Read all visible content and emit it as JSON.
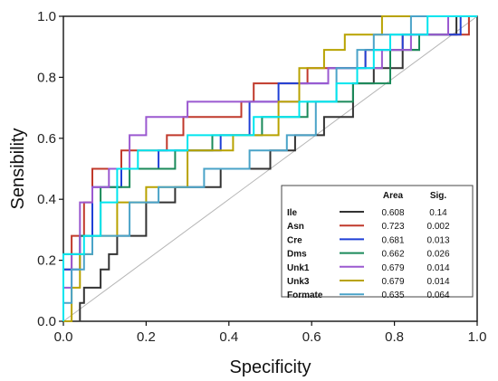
{
  "chart_data": {
    "type": "line",
    "xlabel": "Specificity",
    "ylabel": "Sensibility",
    "xlim": [
      0,
      1
    ],
    "ylim": [
      0,
      1
    ],
    "x_ticks": [
      "0.0",
      "0.2",
      "0.4",
      "0.6",
      "0.8",
      "1.0"
    ],
    "y_ticks": [
      "0.0",
      "0.2",
      "0.4",
      "0.6",
      "0.8",
      "1.0"
    ],
    "grid": false,
    "reference_line": [
      [
        0,
        0
      ],
      [
        1,
        1
      ]
    ],
    "legend": {
      "placement": "bottom-right",
      "headers": [
        "Area",
        "Sig."
      ]
    },
    "series": [
      {
        "name": "Ile",
        "area": "0.608",
        "sig": "0.14",
        "color": "#333333",
        "points": [
          [
            0.04,
            0
          ],
          [
            0.04,
            0.06
          ],
          [
            0.05,
            0.06
          ],
          [
            0.05,
            0.11
          ],
          [
            0.09,
            0.11
          ],
          [
            0.09,
            0.17
          ],
          [
            0.11,
            0.17
          ],
          [
            0.11,
            0.22
          ],
          [
            0.13,
            0.22
          ],
          [
            0.13,
            0.28
          ],
          [
            0.2,
            0.28
          ],
          [
            0.2,
            0.39
          ],
          [
            0.27,
            0.39
          ],
          [
            0.27,
            0.44
          ],
          [
            0.38,
            0.44
          ],
          [
            0.38,
            0.5
          ],
          [
            0.5,
            0.5
          ],
          [
            0.5,
            0.56
          ],
          [
            0.56,
            0.56
          ],
          [
            0.56,
            0.61
          ],
          [
            0.63,
            0.61
          ],
          [
            0.63,
            0.67
          ],
          [
            0.7,
            0.67
          ],
          [
            0.7,
            0.78
          ],
          [
            0.75,
            0.78
          ],
          [
            0.75,
            0.83
          ],
          [
            0.82,
            0.83
          ],
          [
            0.82,
            0.89
          ],
          [
            0.86,
            0.89
          ],
          [
            0.86,
            0.94
          ],
          [
            0.95,
            0.94
          ],
          [
            0.95,
            1
          ],
          [
            1,
            1
          ]
        ]
      },
      {
        "name": "Asn",
        "area": "0.723",
        "sig": "0.002",
        "color": "#c0392b",
        "points": [
          [
            0,
            0
          ],
          [
            0,
            0.17
          ],
          [
            0.02,
            0.17
          ],
          [
            0.02,
            0.28
          ],
          [
            0.05,
            0.28
          ],
          [
            0.05,
            0.39
          ],
          [
            0.07,
            0.39
          ],
          [
            0.07,
            0.5
          ],
          [
            0.14,
            0.5
          ],
          [
            0.14,
            0.56
          ],
          [
            0.25,
            0.56
          ],
          [
            0.25,
            0.61
          ],
          [
            0.29,
            0.61
          ],
          [
            0.29,
            0.67
          ],
          [
            0.43,
            0.67
          ],
          [
            0.43,
            0.72
          ],
          [
            0.46,
            0.72
          ],
          [
            0.46,
            0.78
          ],
          [
            0.59,
            0.78
          ],
          [
            0.59,
            0.83
          ],
          [
            0.73,
            0.83
          ],
          [
            0.73,
            0.89
          ],
          [
            0.82,
            0.89
          ],
          [
            0.82,
            0.94
          ],
          [
            0.98,
            0.94
          ],
          [
            0.98,
            1
          ],
          [
            1,
            1
          ]
        ]
      },
      {
        "name": "Cre",
        "area": "0.681",
        "sig": "0.013",
        "color": "#1f3fd6",
        "points": [
          [
            0,
            0
          ],
          [
            0,
            0.17
          ],
          [
            0.04,
            0.17
          ],
          [
            0.04,
            0.28
          ],
          [
            0.07,
            0.28
          ],
          [
            0.07,
            0.44
          ],
          [
            0.14,
            0.44
          ],
          [
            0.14,
            0.5
          ],
          [
            0.23,
            0.5
          ],
          [
            0.23,
            0.56
          ],
          [
            0.38,
            0.56
          ],
          [
            0.38,
            0.61
          ],
          [
            0.45,
            0.61
          ],
          [
            0.45,
            0.72
          ],
          [
            0.52,
            0.72
          ],
          [
            0.52,
            0.78
          ],
          [
            0.64,
            0.78
          ],
          [
            0.64,
            0.83
          ],
          [
            0.73,
            0.83
          ],
          [
            0.73,
            0.89
          ],
          [
            0.82,
            0.89
          ],
          [
            0.82,
            0.94
          ],
          [
            0.96,
            0.94
          ],
          [
            0.96,
            1
          ],
          [
            1,
            1
          ]
        ]
      },
      {
        "name": "Dms",
        "area": "0.662",
        "sig": "0.026",
        "color": "#1a8a5a",
        "points": [
          [
            0,
            0
          ],
          [
            0,
            0.22
          ],
          [
            0.04,
            0.22
          ],
          [
            0.04,
            0.28
          ],
          [
            0.09,
            0.28
          ],
          [
            0.09,
            0.44
          ],
          [
            0.16,
            0.44
          ],
          [
            0.16,
            0.5
          ],
          [
            0.27,
            0.5
          ],
          [
            0.27,
            0.56
          ],
          [
            0.36,
            0.56
          ],
          [
            0.36,
            0.61
          ],
          [
            0.48,
            0.61
          ],
          [
            0.48,
            0.67
          ],
          [
            0.59,
            0.67
          ],
          [
            0.59,
            0.72
          ],
          [
            0.7,
            0.72
          ],
          [
            0.7,
            0.78
          ],
          [
            0.79,
            0.78
          ],
          [
            0.79,
            0.89
          ],
          [
            0.86,
            0.89
          ],
          [
            0.86,
            0.94
          ],
          [
            0.93,
            0.94
          ],
          [
            0.93,
            1
          ],
          [
            1,
            1
          ]
        ]
      },
      {
        "name": "Unk1",
        "area": "0.679",
        "sig": "0.014",
        "color": "#9b59d0",
        "points": [
          [
            0,
            0
          ],
          [
            0,
            0.11
          ],
          [
            0.02,
            0.11
          ],
          [
            0.02,
            0.22
          ],
          [
            0.04,
            0.22
          ],
          [
            0.04,
            0.39
          ],
          [
            0.07,
            0.39
          ],
          [
            0.07,
            0.44
          ],
          [
            0.11,
            0.44
          ],
          [
            0.11,
            0.5
          ],
          [
            0.16,
            0.5
          ],
          [
            0.16,
            0.61
          ],
          [
            0.2,
            0.61
          ],
          [
            0.2,
            0.67
          ],
          [
            0.3,
            0.67
          ],
          [
            0.3,
            0.72
          ],
          [
            0.57,
            0.72
          ],
          [
            0.57,
            0.78
          ],
          [
            0.64,
            0.78
          ],
          [
            0.64,
            0.83
          ],
          [
            0.77,
            0.83
          ],
          [
            0.77,
            0.89
          ],
          [
            0.84,
            0.89
          ],
          [
            0.84,
            0.94
          ],
          [
            0.93,
            0.94
          ],
          [
            0.93,
            1
          ],
          [
            1,
            1
          ]
        ]
      },
      {
        "name": "Unk3",
        "area": "0.679",
        "sig": "0.014",
        "color": "#b8a200",
        "points": [
          [
            0,
            0
          ],
          [
            0.02,
            0
          ],
          [
            0.02,
            0.11
          ],
          [
            0.04,
            0.11
          ],
          [
            0.04,
            0.22
          ],
          [
            0.07,
            0.22
          ],
          [
            0.07,
            0.28
          ],
          [
            0.13,
            0.28
          ],
          [
            0.13,
            0.39
          ],
          [
            0.2,
            0.39
          ],
          [
            0.2,
            0.44
          ],
          [
            0.3,
            0.44
          ],
          [
            0.3,
            0.56
          ],
          [
            0.41,
            0.56
          ],
          [
            0.41,
            0.61
          ],
          [
            0.52,
            0.61
          ],
          [
            0.52,
            0.72
          ],
          [
            0.57,
            0.72
          ],
          [
            0.57,
            0.83
          ],
          [
            0.63,
            0.83
          ],
          [
            0.63,
            0.89
          ],
          [
            0.68,
            0.89
          ],
          [
            0.68,
            0.94
          ],
          [
            0.77,
            0.94
          ],
          [
            0.77,
            1
          ],
          [
            1,
            1
          ]
        ]
      },
      {
        "name": "Formate",
        "area": "0.635",
        "sig": "0.064",
        "color": "#4aa3c8",
        "points": [
          [
            0,
            0
          ],
          [
            0,
            0.06
          ],
          [
            0.02,
            0.06
          ],
          [
            0.02,
            0.17
          ],
          [
            0.05,
            0.17
          ],
          [
            0.05,
            0.22
          ],
          [
            0.07,
            0.22
          ],
          [
            0.07,
            0.28
          ],
          [
            0.16,
            0.28
          ],
          [
            0.16,
            0.39
          ],
          [
            0.23,
            0.39
          ],
          [
            0.23,
            0.44
          ],
          [
            0.34,
            0.44
          ],
          [
            0.34,
            0.5
          ],
          [
            0.45,
            0.5
          ],
          [
            0.45,
            0.56
          ],
          [
            0.54,
            0.56
          ],
          [
            0.54,
            0.61
          ],
          [
            0.61,
            0.61
          ],
          [
            0.61,
            0.72
          ],
          [
            0.66,
            0.72
          ],
          [
            0.66,
            0.83
          ],
          [
            0.71,
            0.83
          ],
          [
            0.71,
            0.89
          ],
          [
            0.75,
            0.89
          ],
          [
            0.75,
            0.94
          ],
          [
            0.84,
            0.94
          ],
          [
            0.84,
            1
          ],
          [
            1,
            1
          ]
        ]
      },
      {
        "name": "",
        "area": "",
        "sig": "",
        "color": "#00e5ee",
        "legend": false,
        "points": [
          [
            0,
            0
          ],
          [
            0,
            0.22
          ],
          [
            0.05,
            0.22
          ],
          [
            0.05,
            0.28
          ],
          [
            0.09,
            0.28
          ],
          [
            0.09,
            0.39
          ],
          [
            0.13,
            0.39
          ],
          [
            0.13,
            0.5
          ],
          [
            0.18,
            0.5
          ],
          [
            0.18,
            0.56
          ],
          [
            0.3,
            0.56
          ],
          [
            0.3,
            0.61
          ],
          [
            0.46,
            0.61
          ],
          [
            0.46,
            0.67
          ],
          [
            0.57,
            0.67
          ],
          [
            0.57,
            0.72
          ],
          [
            0.66,
            0.72
          ],
          [
            0.66,
            0.78
          ],
          [
            0.71,
            0.78
          ],
          [
            0.71,
            0.83
          ],
          [
            0.75,
            0.83
          ],
          [
            0.75,
            0.89
          ],
          [
            0.79,
            0.89
          ],
          [
            0.79,
            0.94
          ],
          [
            0.88,
            0.94
          ],
          [
            0.88,
            1
          ],
          [
            1,
            1
          ]
        ]
      }
    ]
  }
}
